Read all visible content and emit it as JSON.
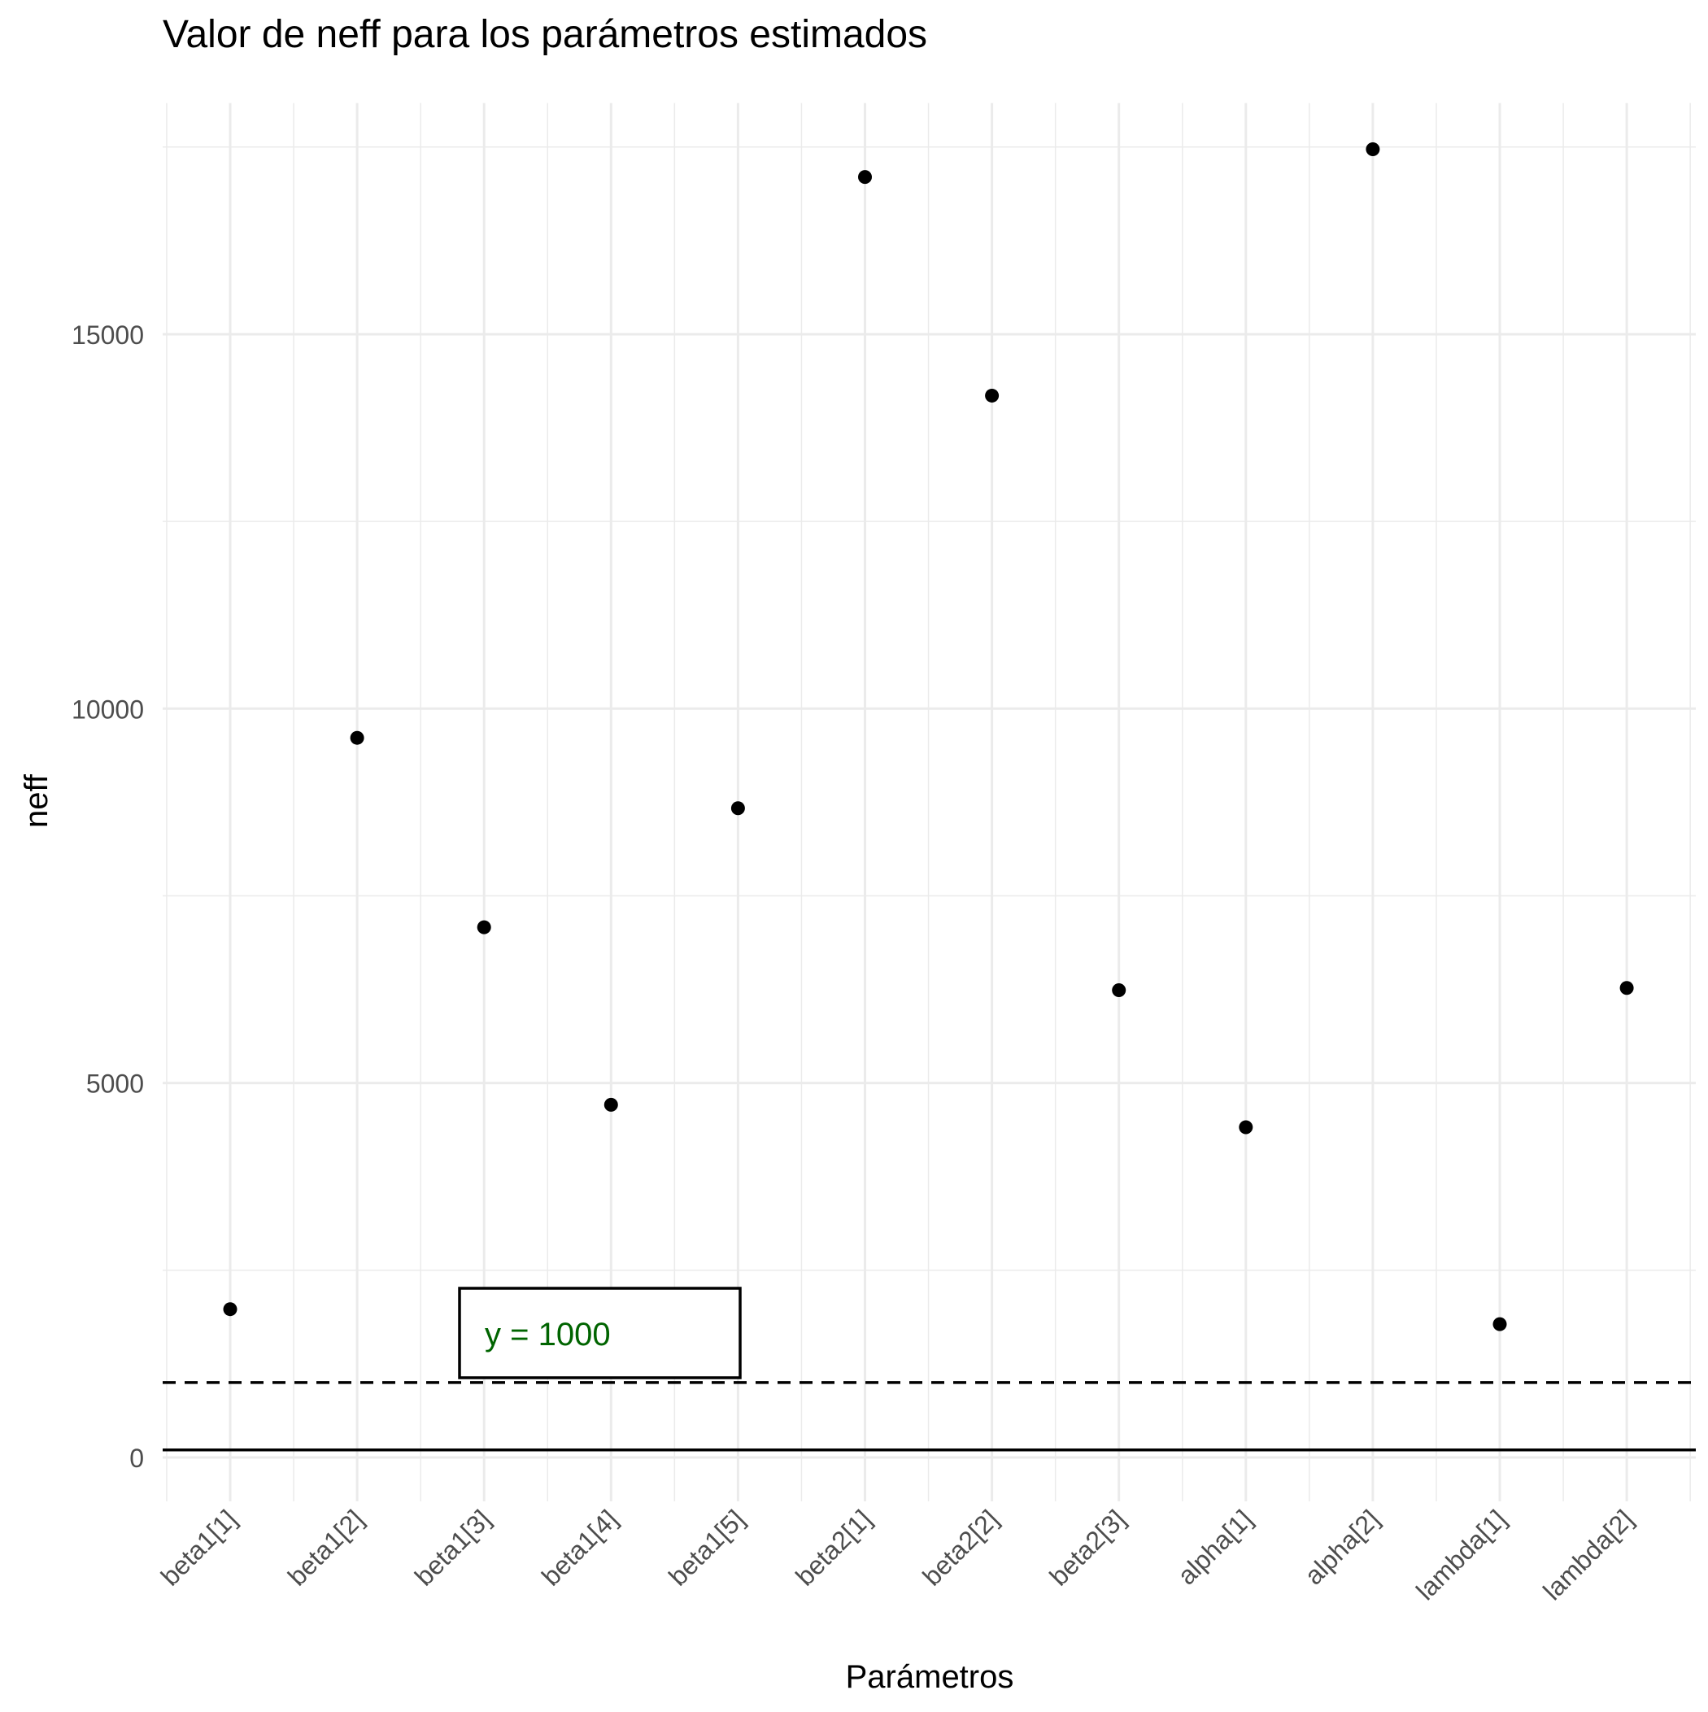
{
  "chart_data": {
    "type": "scatter",
    "title": "Valor de neff para los parámetros estimados",
    "xlabel": "Parámetros",
    "ylabel": "neff",
    "categories": [
      "beta1[1]",
      "beta1[2]",
      "beta1[3]",
      "beta1[4]",
      "beta1[5]",
      "beta2[1]",
      "beta2[2]",
      "beta2[3]",
      "alpha[1]",
      "alpha[2]",
      "lambda[1]",
      "lambda[2]"
    ],
    "values": [
      1980,
      9610,
      7080,
      4710,
      8670,
      17100,
      14180,
      6240,
      4410,
      17470,
      1780,
      6270
    ],
    "ylim": [
      -500,
      18000
    ],
    "yticks": [
      0,
      5000,
      10000,
      15000
    ],
    "ytick_labels": [
      "0",
      "5000",
      "10000",
      "15000"
    ],
    "grid": true,
    "reference_lines": [
      {
        "y": 1000,
        "style": "dashed",
        "color": "#000000"
      },
      {
        "y": 100,
        "style": "solid",
        "color": "#000000"
      }
    ],
    "annotation": {
      "text": "y = 1000",
      "color": "#006400"
    },
    "point_color": "#000000",
    "grid_color": "#ebebeb"
  }
}
